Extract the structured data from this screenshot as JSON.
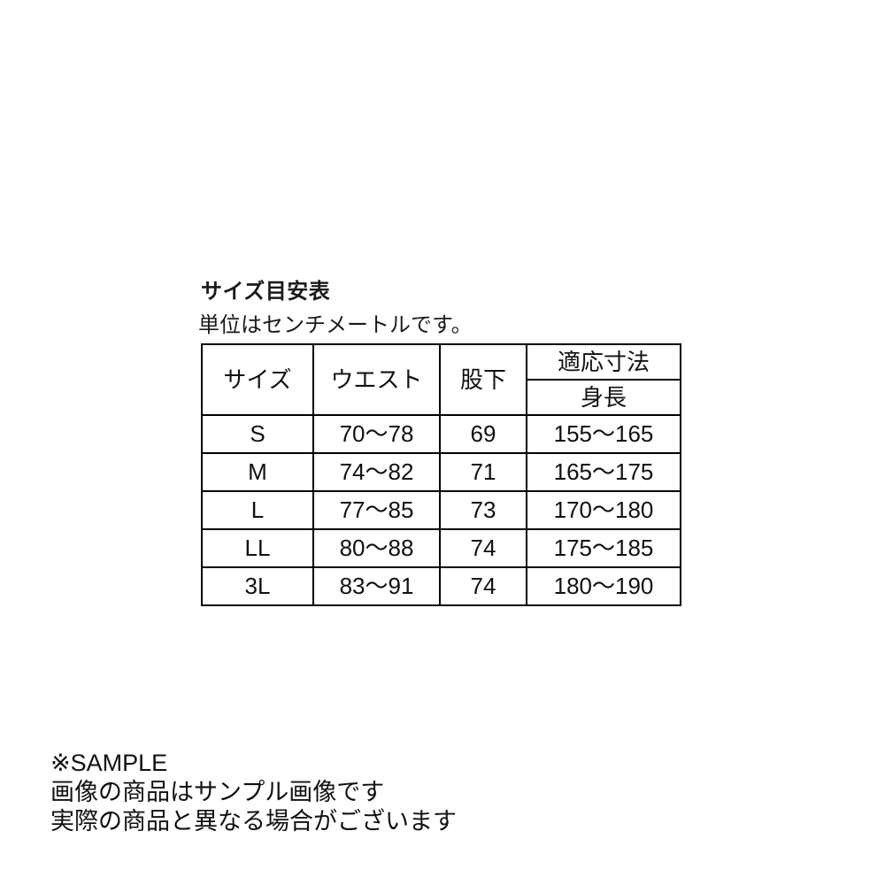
{
  "page": {
    "title": "サイズ目安表",
    "subtitle": "単位はセンチメートルです。"
  },
  "colors": {
    "background": "#ffffff",
    "text": "#111111",
    "table_border": "#000000"
  },
  "table": {
    "headers": {
      "size": "サイズ",
      "waist": "ウエスト",
      "inseam": "股下",
      "fit": "適応寸法",
      "body_height": "身長"
    },
    "rows": [
      {
        "size": "S",
        "waist": "70〜78",
        "inseam": "69",
        "body_height": "155〜165"
      },
      {
        "size": "M",
        "waist": "74〜82",
        "inseam": "71",
        "body_height": "165〜175"
      },
      {
        "size": "L",
        "waist": "77〜85",
        "inseam": "73",
        "body_height": "170〜180"
      },
      {
        "size": "LL",
        "waist": "80〜88",
        "inseam": "74",
        "body_height": "175〜185"
      },
      {
        "size": "3L",
        "waist": "83〜91",
        "inseam": "74",
        "body_height": "180〜190"
      }
    ]
  },
  "notes": {
    "sample_label": "※SAMPLE",
    "line1": "画像の商品はサンプル画像です",
    "line2": "実際の商品と異なる場合がございます"
  }
}
